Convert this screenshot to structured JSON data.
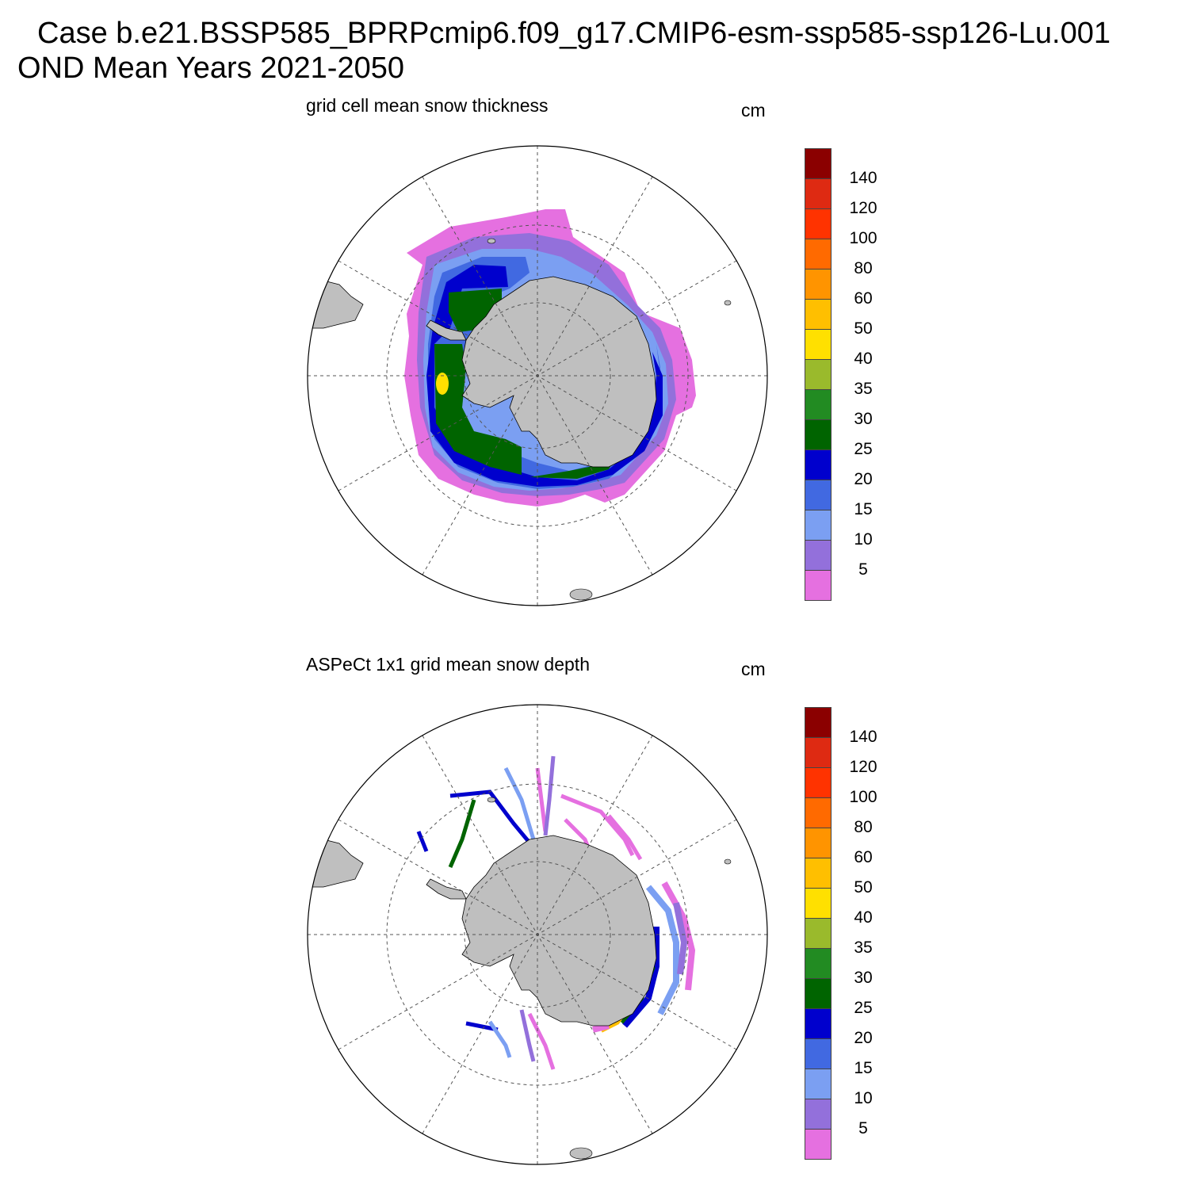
{
  "header": {
    "case_line": "Case b.e21.BSSP585_BPRPcmip6.f09_g17.CMIP6-esm-ssp585-ssp126-Lu.001",
    "period_line": "OND Mean   Years 2021-2050"
  },
  "panels": [
    {
      "title": "grid cell mean snow thickness",
      "units": "cm"
    },
    {
      "title": "ASPeCt 1x1 grid mean snow depth",
      "units": "cm"
    }
  ],
  "colorbar": {
    "levels": [
      "5",
      "10",
      "15",
      "20",
      "25",
      "30",
      "35",
      "40",
      "50",
      "60",
      "80",
      "100",
      "120",
      "140"
    ],
    "colors": [
      "#e570e0",
      "#9370db",
      "#7b9ff2",
      "#4169e1",
      "#0000cd",
      "#006400",
      "#228b22",
      "#9aba2c",
      "#ffe000",
      "#ffbf00",
      "#ff9400",
      "#ff6a00",
      "#ff3300",
      "#de2a12",
      "#8b0000"
    ]
  },
  "map_colors": {
    "land": "#bfbfbf",
    "ocean": "#ffffff",
    "grid": "#555555"
  }
}
